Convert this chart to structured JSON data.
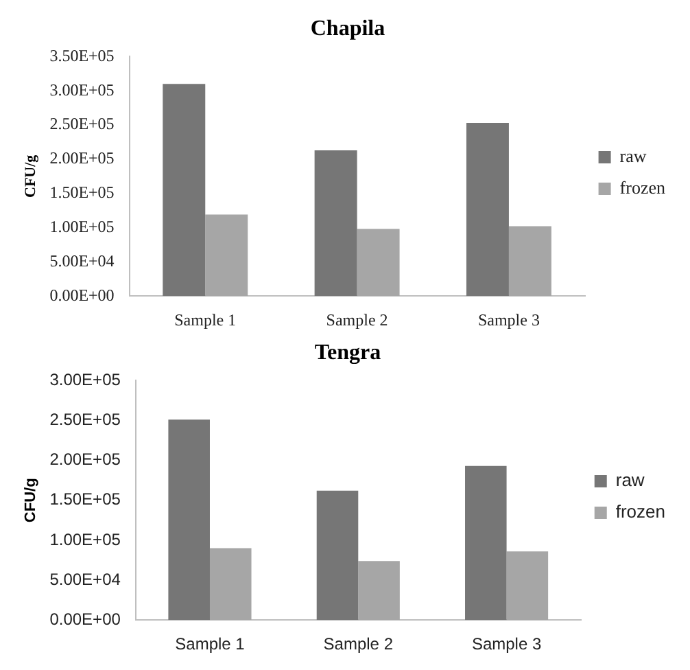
{
  "chart_data": [
    {
      "type": "bar",
      "title": "Chapila",
      "ylabel": "CFU/g",
      "categories": [
        "Sample 1",
        "Sample 2",
        "Sample 3"
      ],
      "series": [
        {
          "name": "raw",
          "color": "#767676",
          "values": [
            310000,
            213000,
            253000
          ]
        },
        {
          "name": "frozen",
          "color": "#a6a6a6",
          "values": [
            119000,
            98000,
            102000
          ]
        }
      ],
      "ylim": [
        0,
        350000
      ],
      "yticks": [
        {
          "value": 0,
          "label": "0.00E+00"
        },
        {
          "value": 50000,
          "label": "5.00E+04"
        },
        {
          "value": 100000,
          "label": "1.00E+05"
        },
        {
          "value": 150000,
          "label": "1.50E+05"
        },
        {
          "value": 200000,
          "label": "2.00E+05"
        },
        {
          "value": 250000,
          "label": "2.50E+05"
        },
        {
          "value": 300000,
          "label": "3.00E+05"
        },
        {
          "value": 350000,
          "label": "3.50E+05"
        }
      ],
      "grid": false,
      "legend": "right"
    },
    {
      "type": "bar",
      "title": "Tengra",
      "ylabel": "CFU/g",
      "categories": [
        "Sample 1",
        "Sample 2",
        "Sample 3"
      ],
      "series": [
        {
          "name": "raw",
          "color": "#767676",
          "values": [
            251000,
            162000,
            193000
          ]
        },
        {
          "name": "frozen",
          "color": "#a6a6a6",
          "values": [
            90000,
            74000,
            86000
          ]
        }
      ],
      "ylim": [
        0,
        300000
      ],
      "yticks": [
        {
          "value": 0,
          "label": "0.00E+00"
        },
        {
          "value": 50000,
          "label": "5.00E+04"
        },
        {
          "value": 100000,
          "label": "1.00E+05"
        },
        {
          "value": 150000,
          "label": "1.50E+05"
        },
        {
          "value": 200000,
          "label": "2.00E+05"
        },
        {
          "value": 250000,
          "label": "2.50E+05"
        },
        {
          "value": 300000,
          "label": "3.00E+05"
        }
      ],
      "grid": false,
      "legend": "right"
    }
  ]
}
